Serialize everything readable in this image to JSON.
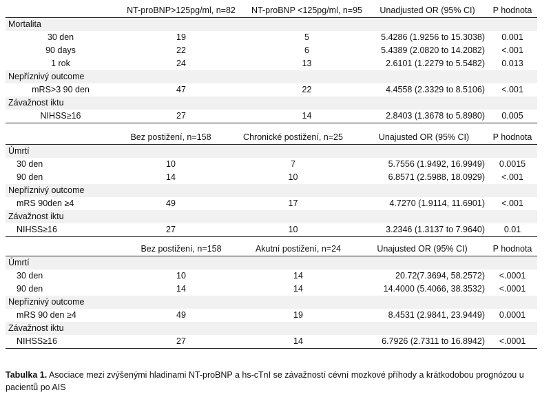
{
  "table1": {
    "headers": [
      "",
      "NT-proBNP>125pg/ml, n=82",
      "NT-proBNP <125pg/ml, n=95",
      "Unadjusted OR (95% CI)",
      "P hodnota"
    ],
    "sections": [
      {
        "title": "Mortalita",
        "rows": [
          {
            "label": "30 den",
            "a": "19",
            "b": "5",
            "or": "5.4286 (1.9256 to 15.3038)",
            "p": "0.001"
          },
          {
            "label": "90 days",
            "a": "22",
            "b": "6",
            "or": "5.4389 (2.0820 to 14.2082)",
            "p": "<.001"
          },
          {
            "label": "1 rok",
            "a": "24",
            "b": "13",
            "or": "2.6101 (1.2279 to 5.5482)",
            "p": "0.013"
          }
        ]
      },
      {
        "title": "Nepříznivý outcome",
        "rows": [
          {
            "label": "mRS>3 90 den",
            "a": "47",
            "b": "22",
            "or": "4.4558 (2.3329 to 8.5106)",
            "p": "<.001"
          }
        ]
      },
      {
        "title": "Závažnost iktu",
        "rows": [
          {
            "label": "NIHSS≥16",
            "a": "27",
            "b": "14",
            "or": "2.8403 (1.3678 to 5.8980)",
            "p": "0.005"
          }
        ]
      }
    ]
  },
  "table2": {
    "headers": [
      "",
      "Bez postižení, n=158",
      "Chronické postižení, n=25",
      "Unajusted OR (95% CI)",
      "P hodnota"
    ],
    "sections": [
      {
        "title": "Úmrtí",
        "rows": [
          {
            "label": "30 den",
            "a": "10",
            "b": "7",
            "or": "5.7556 (1.9492, 16.9949)",
            "p": "0.0015"
          },
          {
            "label": "90 den",
            "a": "14",
            "b": "10",
            "or": "6.8571 (2.5988, 18.0929)",
            "p": "<.001"
          }
        ]
      },
      {
        "title": "Nepříznivý outcome",
        "rows": [
          {
            "label": "mRS 90den  ≥4",
            "a": "49",
            "b": "17",
            "or": "4.7270 (1.9114, 11.6901)",
            "p": "<.001"
          }
        ]
      },
      {
        "title": "Závažnost iktu",
        "rows": [
          {
            "label": "NIHSS≥16",
            "a": "27",
            "b": "10",
            "or": "3.2346 (1.3137 to 7.9640)",
            "p": "0.01"
          }
        ]
      }
    ]
  },
  "table3": {
    "headers": [
      "",
      "Bez postižení, n=158",
      "Akutní postižení, n=24",
      "Unajusted OR (95% CI)",
      "P hodnota"
    ],
    "sections": [
      {
        "title": "Úmrtí",
        "rows": [
          {
            "label": "30 den",
            "a": "10",
            "b": "14",
            "or": "20.72(7.3694, 58.2572)",
            "p": "<.0001"
          },
          {
            "label": "90 den",
            "a": "14",
            "b": "14",
            "or": "14.4000 (5.4066, 38.3532)",
            "p": "<.0001"
          }
        ]
      },
      {
        "title": "Nepříznivý outcome",
        "rows": [
          {
            "label": "mRS 90 den ≥4",
            "a": "49",
            "b": "19",
            "or": "8.4531 (2.9841, 23.9449)",
            "p": "0.0001"
          }
        ]
      },
      {
        "title": "Závažnost iktu",
        "rows": [
          {
            "label": "NIHSS≥16",
            "a": "27",
            "b": "14",
            "or": "6.7926 (2.7311 to 16.8942)",
            "p": "<.0001"
          }
        ]
      }
    ]
  },
  "caption": {
    "label": "Tabulka 1.",
    "text": " Asociace mezi zvýšenými hladinami NT-proBNP a hs-cTnI se závažností cévní mozkové příhody a krátkodobou prognózou u pacientů po AIS"
  }
}
